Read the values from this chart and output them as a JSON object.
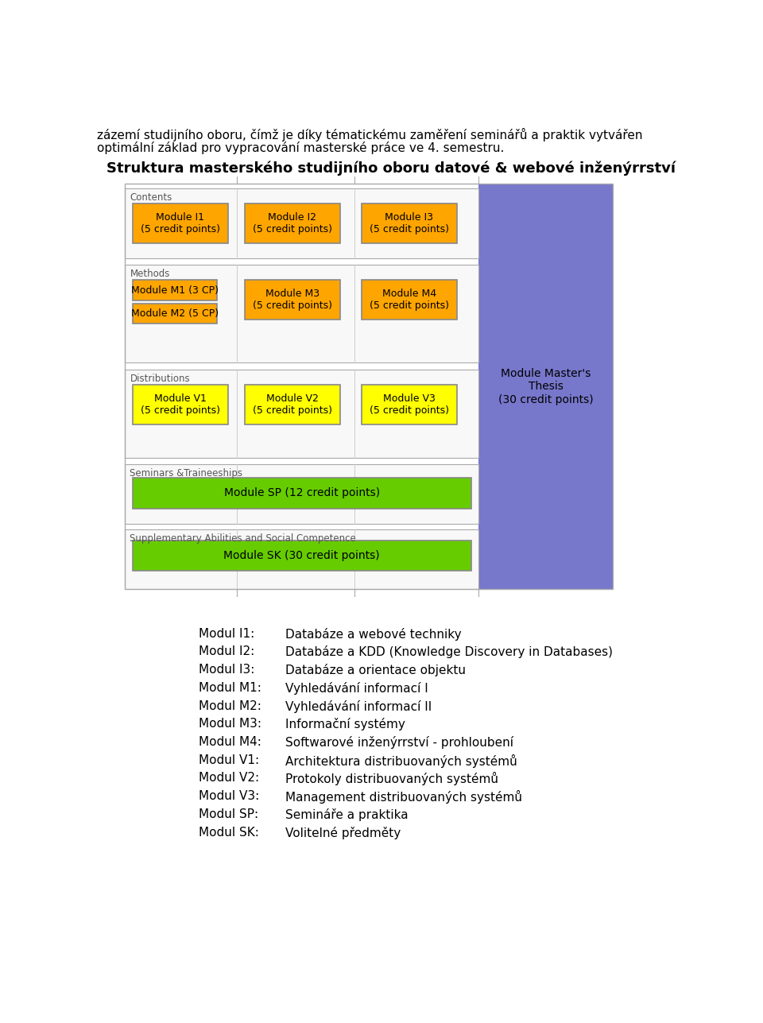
{
  "bg_color": "#ffffff",
  "top_text_line1": "zázemí studijního oboru, čímž je díky tématickému zaměření seminářů a praktik vytvářen",
  "top_text_line2": "optimální základ pro vypracování masterské práce ve 4. semestru.",
  "diagram_title": "Struktura masterského studijního oboru datové & webové inženýrrství",
  "orange_color": "#FFA500",
  "yellow_color": "#FFFF00",
  "green_color": "#66CC00",
  "purple_color": "#7777CC",
  "legend_items": [
    [
      "Modul I1:",
      "Databáze a webové techniky"
    ],
    [
      "Modul I2:",
      "Databáze a KDD (Knowledge Discovery in Databases)"
    ],
    [
      "Modul I3:",
      "Databáze a orientace objektu"
    ],
    [
      "Modul M1:",
      "Vyhledávání informací I"
    ],
    [
      "Modul M2:",
      "Vyhledávání informací II"
    ],
    [
      "Modul M3:",
      "Informační systémy"
    ],
    [
      "Modul M4:",
      "Softwarové inženýrrství - prohloubení"
    ],
    [
      "Modul V1:",
      "Architektura distribuovaných systémů"
    ],
    [
      "Modul V2:",
      "Protokoly distribuovaných systémů"
    ],
    [
      "Modul V3:",
      "Management distribuovaných systémů"
    ],
    [
      "Modul SP:",
      "Semináře a praktika"
    ],
    [
      "Modul SK:",
      "Volitelné předměty"
    ]
  ]
}
